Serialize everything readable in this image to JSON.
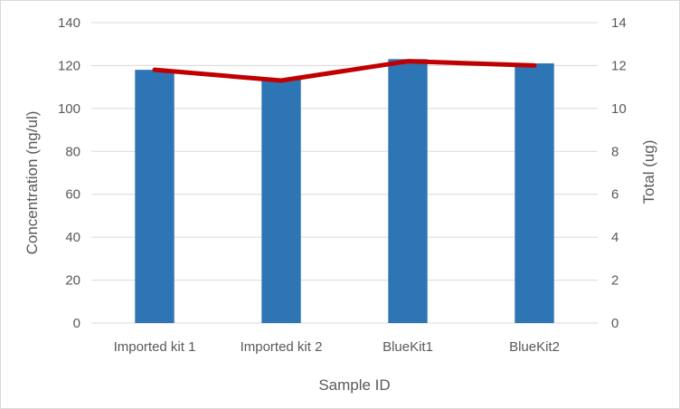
{
  "chart_data": {
    "type": "bar",
    "categories": [
      "Imported kit 1",
      "Imported kit 2",
      "BlueKit1",
      "BlueKit2"
    ],
    "series": [
      {
        "name": "Concentration (ng/ul)",
        "type": "bar",
        "axis": "left",
        "color": "#2e75b6",
        "values": [
          118,
          114,
          123,
          121
        ]
      },
      {
        "name": "Total (ug)",
        "type": "line",
        "axis": "right",
        "color": "#c00000",
        "values": [
          11.8,
          11.3,
          12.2,
          12.0
        ]
      }
    ],
    "xlabel": "Sample ID",
    "ylabel": "Concentration (ng/ul)",
    "y2label": "Total (ug)",
    "ylim": [
      0,
      140
    ],
    "y2lim": [
      0,
      14
    ],
    "yticks": [
      "0",
      "20",
      "40",
      "60",
      "80",
      "100",
      "120",
      "140"
    ],
    "y2ticks": [
      "0",
      "2",
      "4",
      "6",
      "8",
      "10",
      "12",
      "14"
    ],
    "grid": true,
    "gridline_color": "#d9d9d9",
    "legend": "none"
  }
}
